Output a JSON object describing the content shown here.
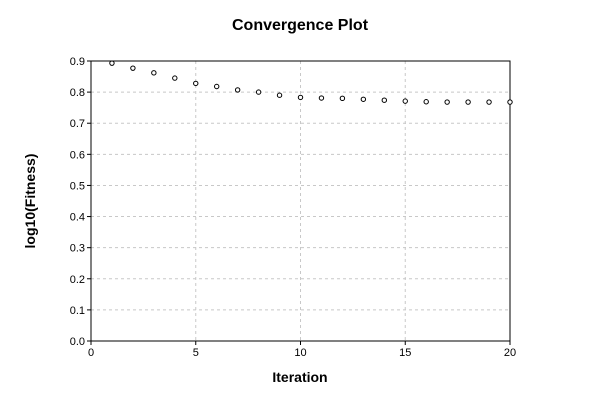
{
  "chart_data": {
    "type": "scatter",
    "title": "Convergence Plot",
    "xlabel": "Iteration",
    "ylabel": "log10(Fitness)",
    "xlim": [
      0,
      20
    ],
    "ylim": [
      0,
      0.9
    ],
    "x_ticks": [
      0,
      5,
      10,
      15,
      20
    ],
    "y_ticks": [
      0,
      0.1,
      0.2,
      0.3,
      0.4,
      0.5,
      0.6,
      0.7,
      0.8,
      0.9
    ],
    "x_tick_labels": [
      "0",
      "5",
      "10",
      "15",
      "20"
    ],
    "y_tick_labels": [
      "0.0",
      "0.1",
      "0.2",
      "0.3",
      "0.4",
      "0.5",
      "0.6",
      "0.7",
      "0.8",
      "0.9"
    ],
    "grid": true,
    "marker": "open-circle",
    "colors": {
      "marker": "#000000",
      "grid": "#c8c8c8",
      "background": "#ffffff"
    },
    "series": [
      {
        "x": [
          1,
          2,
          3,
          4,
          5,
          6,
          7,
          8,
          9,
          10,
          11,
          12,
          13,
          14,
          15,
          16,
          17,
          18,
          19,
          20
        ],
        "y": [
          0.893,
          0.877,
          0.862,
          0.845,
          0.828,
          0.818,
          0.807,
          0.8,
          0.79,
          0.783,
          0.781,
          0.78,
          0.777,
          0.774,
          0.771,
          0.769,
          0.768,
          0.768,
          0.768,
          0.768
        ]
      }
    ]
  }
}
